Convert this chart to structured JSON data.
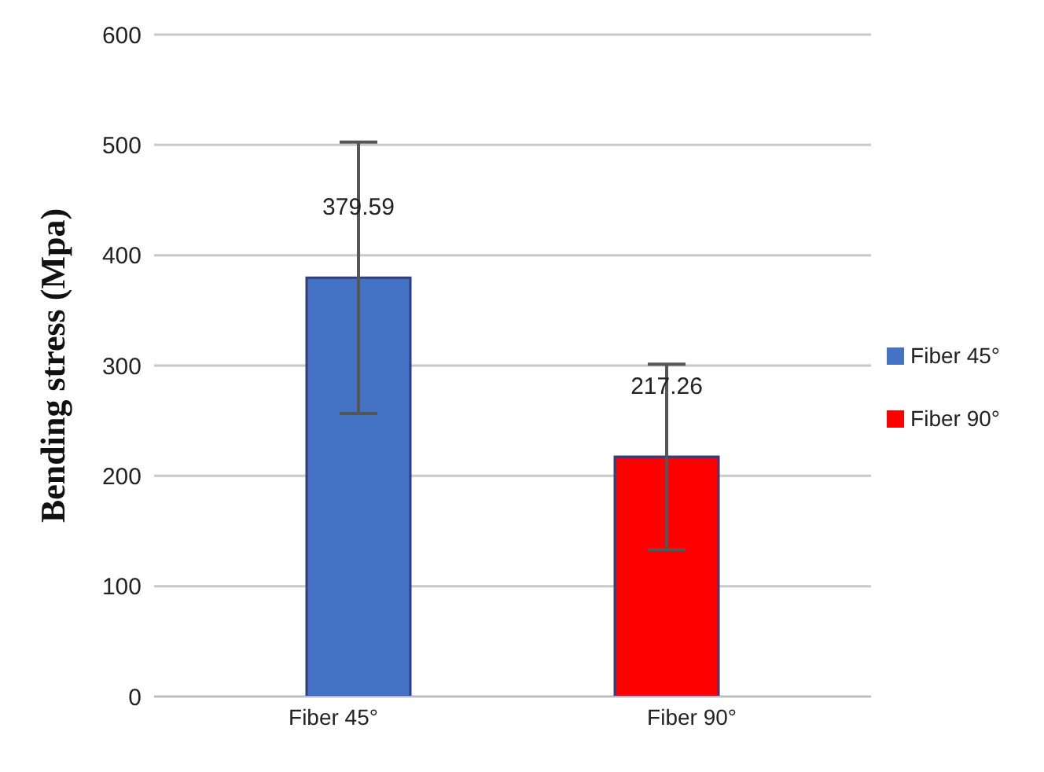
{
  "chart_data": {
    "type": "bar",
    "ylabel": "Bending stress (Mpa)",
    "categories": [
      "Fiber 45°",
      "Fiber 90°"
    ],
    "series": [
      {
        "name": "Fiber 45°",
        "color": "#4472c4",
        "values": [
          379.59,
          null
        ],
        "errors": [
          123,
          null
        ]
      },
      {
        "name": "Fiber 90°",
        "color": "#ff0000",
        "values": [
          null,
          217.26
        ],
        "errors": [
          null,
          84
        ]
      }
    ],
    "ylim": [
      0,
      600
    ],
    "yticks": [
      0,
      100,
      200,
      300,
      400,
      500,
      600
    ],
    "grid": "y",
    "legend": "right",
    "data_labels": true
  }
}
